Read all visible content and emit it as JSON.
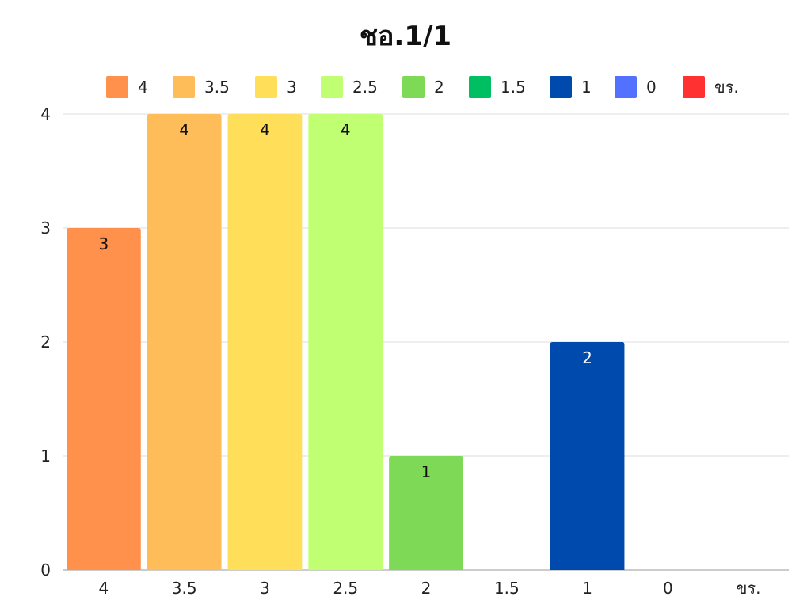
{
  "chart_data": {
    "type": "bar",
    "title": "ชอ.1/1",
    "categories": [
      "4",
      "3.5",
      "3",
      "2.5",
      "2",
      "1.5",
      "1",
      "0",
      "ขร."
    ],
    "values": [
      3,
      4,
      4,
      4,
      1,
      0,
      2,
      0,
      0
    ],
    "colors": [
      "#FF914D",
      "#FFBD59",
      "#FFDE59",
      "#C1FF72",
      "#7ED957",
      "#00BF63",
      "#004AAD",
      "#5271FF",
      "#FF3131"
    ],
    "label_colors": [
      "#111111",
      "#111111",
      "#111111",
      "#111111",
      "#111111",
      "#111111",
      "#ffffff",
      "#111111",
      "#111111"
    ],
    "ylim": [
      0,
      4
    ],
    "yticks": [
      "0",
      "1",
      "2",
      "3",
      "4"
    ],
    "xlabel": "",
    "ylabel": "",
    "grid": true,
    "legend": {
      "position": "top",
      "entries": [
        "4",
        "3.5",
        "3",
        "2.5",
        "2",
        "1.5",
        "1",
        "0",
        "ขร."
      ]
    }
  }
}
